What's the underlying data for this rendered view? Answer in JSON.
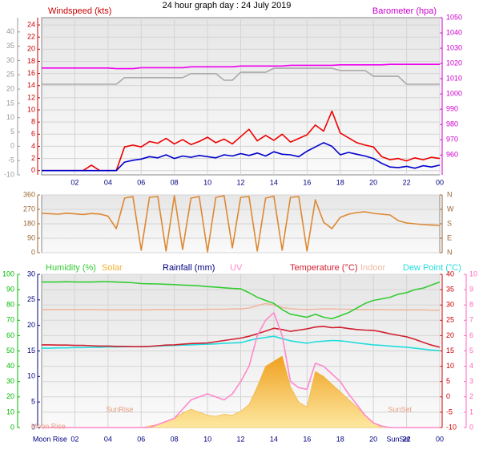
{
  "title": "24 hour graph day : 24 July 2019",
  "chart_data": [
    {
      "type": "line",
      "xlim": [
        0,
        24
      ],
      "xticks": [
        {
          "value": 2,
          "label": "02"
        },
        {
          "value": 4,
          "label": "04"
        },
        {
          "value": 6,
          "label": "06"
        },
        {
          "value": 8,
          "label": "08"
        },
        10,
        12,
        14,
        16,
        18,
        20,
        22,
        {
          "value": 24,
          "label": "00"
        }
      ],
      "grid": true,
      "axes": [
        {
          "label": "Windspeed (kts)",
          "color": "#cc0000",
          "lim": [
            -0.7,
            25.2
          ],
          "ticks": [
            0,
            2,
            4,
            6,
            8,
            10,
            12,
            14,
            16,
            18,
            20,
            22,
            24
          ]
        },
        {
          "label": "Barometer (hpa)",
          "color": "#cc00cc",
          "lim": [
            947,
            1050
          ],
          "ticks": [
            960,
            970,
            980,
            990,
            1000,
            1010,
            1020,
            1030,
            1040,
            1050
          ]
        },
        {
          "color": "#999999",
          "lim": [
            -10,
            45
          ],
          "ticks": [
            -10,
            -5,
            0,
            5,
            10,
            15,
            20,
            25,
            30,
            35,
            40
          ]
        }
      ],
      "x": [
        0,
        0.5,
        1,
        1.5,
        2,
        2.5,
        3,
        3.5,
        4,
        4.5,
        5,
        5.5,
        6,
        6.5,
        7,
        7.5,
        8,
        8.5,
        9,
        9.5,
        10,
        10.5,
        11,
        11.5,
        12,
        12.5,
        13,
        13.5,
        14,
        14.5,
        15,
        15.5,
        16,
        16.5,
        17,
        17.5,
        18,
        18.5,
        19,
        19.5,
        20,
        20.5,
        21,
        21.5,
        22,
        22.5,
        23,
        23.5,
        24
      ],
      "series": [
        {
          "color": "#aaaaaa",
          "axis": 2,
          "values": [
            21.7,
            21.7,
            21.7,
            21.7,
            21.7,
            21.7,
            21.7,
            21.7,
            21.7,
            21.7,
            24.0,
            24.0,
            24.0,
            24.0,
            24.0,
            24.0,
            24.0,
            24.0,
            25.4,
            25.4,
            25.4,
            25.4,
            23.1,
            23.1,
            25.9,
            25.9,
            25.9,
            25.9,
            27.3,
            27.3,
            27.3,
            27.3,
            27.3,
            27.3,
            27.3,
            27.3,
            26.5,
            26.5,
            26.5,
            26.5,
            24.5,
            24.5,
            24.5,
            24.5,
            21.7,
            21.7,
            21.7,
            21.7,
            21.7
          ]
        },
        {
          "color": "#ee00ee",
          "axis": 1,
          "values": [
            1017.0,
            1017.0,
            1017.0,
            1017.0,
            1017.0,
            1017.0,
            1017.0,
            1017.0,
            1017.0,
            1016.6,
            1016.6,
            1016.6,
            1017.2,
            1017.2,
            1017.2,
            1017.2,
            1017.2,
            1017.2,
            1017.8,
            1017.8,
            1017.8,
            1017.8,
            1017.8,
            1017.8,
            1018.3,
            1018.3,
            1018.3,
            1018.3,
            1018.3,
            1018.3,
            1018.8,
            1018.8,
            1018.8,
            1018.8,
            1018.8,
            1018.8,
            1019.1,
            1019.1,
            1019.1,
            1019.1,
            1019.1,
            1019.1,
            1019.4,
            1019.4,
            1019.4,
            1019.4,
            1019.4,
            1019.4,
            1019.4
          ]
        },
        {
          "color": "#ee0000",
          "axis": 0,
          "values": [
            0,
            0,
            0,
            0,
            0,
            0,
            0.9,
            0,
            0,
            0,
            3.9,
            4.2,
            3.9,
            4.8,
            4.5,
            5.3,
            4.4,
            5.1,
            4.3,
            4.8,
            5.5,
            4.6,
            5.2,
            4.4,
            5.6,
            6.8,
            4.9,
            5.8,
            5.0,
            6.0,
            4.7,
            5.3,
            5.9,
            7.5,
            6.5,
            9.8,
            6.2,
            5.4,
            4.6,
            4.2,
            3.9,
            2.3,
            1.8,
            2.0,
            1.6,
            2.1,
            1.8,
            2.2,
            2.0
          ]
        },
        {
          "color": "#0000cc",
          "axis": 0,
          "values": [
            0,
            0,
            0,
            0,
            0,
            0,
            0,
            0,
            0,
            0,
            1.4,
            1.7,
            1.9,
            2.3,
            2.1,
            2.6,
            2.0,
            2.4,
            2.2,
            2.5,
            2.3,
            2.1,
            2.6,
            2.4,
            2.8,
            2.5,
            2.9,
            2.4,
            3.1,
            2.7,
            2.6,
            2.3,
            3.2,
            3.9,
            4.6,
            4.0,
            2.6,
            3.0,
            2.7,
            2.4,
            2.0,
            1.2,
            0.6,
            0.5,
            0.7,
            0.4,
            0.8,
            0.6,
            0.9
          ]
        }
      ]
    },
    {
      "type": "line",
      "xlim": [
        0,
        24
      ],
      "grid": true,
      "axes": [
        {
          "color": "#996633",
          "lim": [
            0,
            360
          ],
          "ticks": [
            0,
            90,
            180,
            270,
            360
          ]
        },
        {
          "color": "#996633",
          "lim": [
            0,
            360
          ],
          "ticks": [
            {
              "value": 0,
              "label": "N"
            },
            {
              "value": 90,
              "label": "E"
            },
            {
              "value": 180,
              "label": "S"
            },
            {
              "value": 270,
              "label": "W"
            },
            {
              "value": 360,
              "label": "N"
            }
          ]
        }
      ],
      "x": [
        0,
        0.5,
        1,
        1.5,
        2,
        2.5,
        3,
        3.5,
        4,
        4.5,
        5,
        5.5,
        6,
        6.5,
        7,
        7.5,
        8,
        8.5,
        9,
        9.5,
        10,
        10.5,
        11,
        11.5,
        12,
        12.5,
        13,
        13.5,
        14,
        14.5,
        15,
        15.5,
        16,
        16.5,
        17,
        17.5,
        18,
        18.5,
        19,
        19.5,
        20,
        20.5,
        21,
        21.5,
        22,
        22.5,
        23,
        23.5,
        24
      ],
      "series": [
        {
          "color": "#dd8833",
          "axis": 0,
          "values": [
            245,
            243,
            240,
            246,
            242,
            238,
            244,
            241,
            228,
            150,
            340,
            350,
            15,
            345,
            350,
            10,
            355,
            20,
            340,
            350,
            5,
            345,
            355,
            30,
            345,
            350,
            10,
            340,
            352,
            15,
            345,
            350,
            10,
            330,
            190,
            150,
            220,
            240,
            250,
            255,
            245,
            240,
            235,
            200,
            185,
            180,
            175,
            172,
            170
          ]
        }
      ]
    },
    {
      "type": "line",
      "xlim": [
        0,
        24
      ],
      "xticks": [
        {
          "value": 2,
          "label": "02"
        },
        {
          "value": 4,
          "label": "04"
        },
        {
          "value": 6,
          "label": "06"
        },
        {
          "value": 8,
          "label": "08"
        },
        10,
        12,
        14,
        16,
        18,
        20,
        22,
        {
          "value": 24,
          "label": "00"
        }
      ],
      "grid": true,
      "axes": [
        {
          "color": "#00bb00",
          "lim": [
            0,
            100
          ],
          "ticks": [
            0,
            10,
            20,
            30,
            40,
            50,
            60,
            70,
            80,
            90,
            100
          ]
        },
        {
          "label": "Rainfall (mm)",
          "color": "#000080",
          "lim": [
            0,
            30
          ],
          "ticks": [
            0,
            5,
            10,
            15,
            20,
            25,
            30
          ]
        },
        {
          "color": "#cc0000",
          "lim": [
            -10,
            40
          ],
          "ticks": [
            -10,
            -5,
            0,
            5,
            10,
            15,
            20,
            25,
            30,
            35,
            40
          ]
        },
        {
          "color": "#ff66bb",
          "lim": [
            0,
            10
          ],
          "ticks": [
            0,
            1,
            2,
            3,
            4,
            5,
            6,
            7,
            8,
            9,
            10
          ]
        }
      ],
      "x": [
        0,
        0.5,
        1,
        1.5,
        2,
        2.5,
        3,
        3.5,
        4,
        4.5,
        5,
        5.5,
        6,
        6.5,
        7,
        7.5,
        8,
        8.5,
        9,
        9.5,
        10,
        10.5,
        11,
        11.5,
        12,
        12.5,
        13,
        13.5,
        14,
        14.5,
        15,
        15.5,
        16,
        16.5,
        17,
        17.5,
        18,
        18.5,
        19,
        19.5,
        20,
        20.5,
        21,
        21.5,
        22,
        22.5,
        23,
        23.5,
        24
      ],
      "series": [
        {
          "name": "Solar",
          "type": "area",
          "color": "#f0b030",
          "axis": 1,
          "values": [
            0,
            0,
            0,
            0,
            0,
            0,
            0,
            0,
            0,
            0,
            0,
            0,
            0,
            0.3,
            0.6,
            1.2,
            1.8,
            2.8,
            3.6,
            3.0,
            2.4,
            2.2,
            2.6,
            2.4,
            3.2,
            4.5,
            8.0,
            12.0,
            13.0,
            14.0,
            8.0,
            5.0,
            4.0,
            11.0,
            10.0,
            8.5,
            7.0,
            5.5,
            4.0,
            2.5,
            1.0,
            0,
            0,
            0,
            0,
            0,
            0,
            0,
            0
          ]
        },
        {
          "name": "Indoor",
          "color": "#f0b8a0",
          "axis": 2,
          "values": [
            28.5,
            28.5,
            28.5,
            28.5,
            28.5,
            28.5,
            28.5,
            28.4,
            28.4,
            28.4,
            28.4,
            28.4,
            28.4,
            28.4,
            28.5,
            28.5,
            28.5,
            28.5,
            28.5,
            28.5,
            28.6,
            28.6,
            28.6,
            28.7,
            28.7,
            29.0,
            29.8,
            30.5,
            30.0,
            29.2,
            28.8,
            28.6,
            28.5,
            28.6,
            28.7,
            28.7,
            28.6,
            28.6,
            28.5,
            28.5,
            28.5,
            28.5,
            28.4,
            28.4,
            28.4,
            28.4,
            28.4,
            28.3,
            28.3
          ]
        },
        {
          "name": "Dew Point (°C)",
          "color": "#22dddd",
          "axis": 2,
          "values": [
            15.9,
            15.9,
            16.0,
            16.0,
            16.1,
            16.1,
            16.2,
            16.2,
            16.3,
            16.3,
            16.4,
            16.4,
            16.4,
            16.5,
            16.6,
            16.7,
            16.8,
            16.9,
            17.0,
            17.1,
            17.2,
            17.3,
            17.5,
            17.6,
            17.7,
            18.4,
            19.0,
            19.4,
            19.8,
            19.0,
            18.3,
            17.9,
            17.5,
            18.0,
            18.2,
            18.4,
            18.3,
            18.0,
            17.6,
            17.3,
            17.0,
            16.8,
            16.6,
            16.4,
            16.2,
            15.9,
            15.6,
            15.3,
            15.1
          ]
        },
        {
          "name": "Temperature (°C)",
          "color": "#d02030",
          "axis": 2,
          "values": [
            17.0,
            17.0,
            16.9,
            16.9,
            16.8,
            16.8,
            16.7,
            16.6,
            16.6,
            16.5,
            16.5,
            16.4,
            16.4,
            16.5,
            16.7,
            16.9,
            17.0,
            17.2,
            17.4,
            17.5,
            17.6,
            18.0,
            18.4,
            18.8,
            19.2,
            19.8,
            20.6,
            21.5,
            22.4,
            22.0,
            21.4,
            21.8,
            22.2,
            22.8,
            23.0,
            22.6,
            22.7,
            22.3,
            22.0,
            21.8,
            21.7,
            21.2,
            20.6,
            20.1,
            19.6,
            18.8,
            17.8,
            16.9,
            16.2
          ]
        },
        {
          "name": "Humidity (%)",
          "color": "#33cc33",
          "axis": 0,
          "values": [
            95.0,
            95.0,
            95.0,
            95.2,
            95.0,
            95.0,
            95.0,
            95.2,
            95.2,
            95.0,
            94.8,
            94.5,
            94.0,
            93.8,
            93.7,
            93.5,
            93.3,
            93.0,
            92.8,
            92.5,
            92.0,
            91.7,
            91.2,
            90.8,
            90.5,
            88,
            85,
            83,
            81,
            77,
            74,
            73,
            72,
            74,
            72,
            71,
            73,
            75,
            78,
            81,
            83,
            84,
            85,
            87,
            88,
            90,
            91,
            93,
            95
          ]
        },
        {
          "name": "UV",
          "color": "#ff88cc",
          "axis": 3,
          "values": [
            0,
            0,
            0,
            0,
            0,
            0,
            0,
            0,
            0,
            0,
            0,
            0,
            0,
            0,
            0.2,
            0.4,
            0.6,
            1.2,
            1.8,
            2.0,
            2.2,
            2.0,
            1.8,
            2.2,
            3.0,
            4.0,
            6.0,
            7.0,
            7.5,
            6.0,
            3.0,
            2.6,
            2.5,
            4.2,
            4.0,
            3.5,
            3.0,
            2.2,
            1.5,
            0.8,
            0.3,
            0.1,
            0,
            0,
            0,
            0,
            0,
            0,
            0
          ]
        }
      ],
      "annotations": [
        {
          "text": "Moon Rise",
          "x": 0.4
        },
        {
          "text": "SunRise",
          "x": 4.7
        },
        {
          "text": "SunSet",
          "x": 21.6
        }
      ],
      "axis_annotations": [
        {
          "text": "Moon Rise",
          "x": 0.5
        },
        {
          "text": "SunSet",
          "x": 21.5
        }
      ]
    }
  ]
}
